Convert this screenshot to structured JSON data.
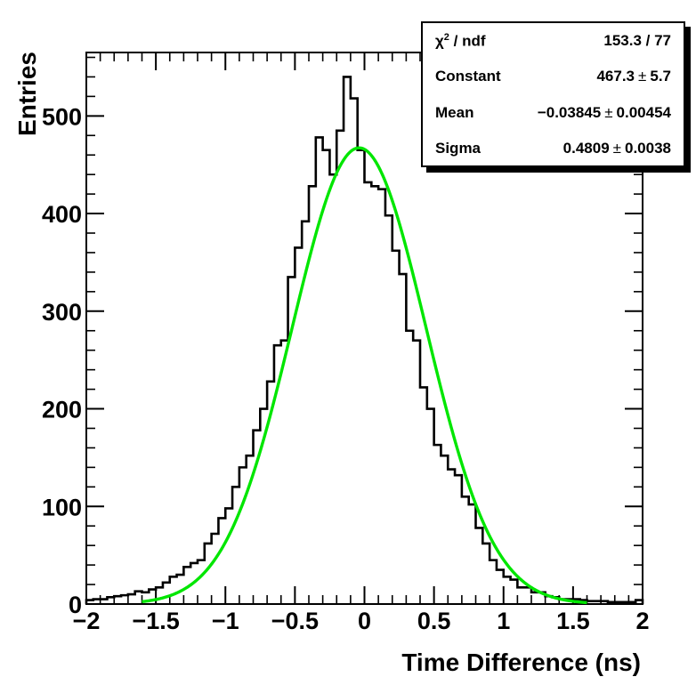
{
  "chart_data": {
    "type": "bar",
    "histogram": true,
    "xlabel": "Time Difference (ns)",
    "ylabel": "Entries",
    "xlim": [
      -2,
      2
    ],
    "ylim": [
      0,
      565
    ],
    "x_ticks": [
      -2,
      -1.5,
      -1,
      -0.5,
      0,
      0.5,
      1,
      1.5,
      2
    ],
    "x_tick_labels": [
      "−2",
      "−1.5",
      "−1",
      "−0.5",
      "0",
      "0.5",
      "1",
      "1.5",
      "2"
    ],
    "y_ticks": [
      0,
      100,
      200,
      300,
      400,
      500
    ],
    "y_tick_labels": [
      "0",
      "100",
      "200",
      "300",
      "400",
      "500"
    ],
    "bin_edges_range": [
      -2,
      2
    ],
    "bin_width": 0.05,
    "values": [
      4,
      5,
      5,
      7,
      8,
      9,
      10,
      13,
      12,
      15,
      17,
      22,
      28,
      30,
      38,
      42,
      45,
      62,
      72,
      88,
      98,
      120,
      140,
      152,
      178,
      200,
      228,
      265,
      270,
      335,
      365,
      392,
      428,
      478,
      465,
      440,
      485,
      540,
      518,
      465,
      432,
      428,
      425,
      398,
      362,
      338,
      280,
      270,
      222,
      200,
      163,
      152,
      138,
      132,
      110,
      102,
      78,
      62,
      45,
      35,
      28,
      25,
      17,
      17,
      12,
      12,
      8,
      7,
      5,
      5,
      5,
      4,
      3,
      3,
      3,
      2,
      2,
      2,
      2,
      4
    ],
    "histogram_color": "#000000",
    "fit": {
      "function": "gaussian",
      "constant": 467.3,
      "mean": -0.03845,
      "sigma": 0.4809,
      "color": "#00e600"
    },
    "grid": false
  },
  "stats_box": {
    "rows": [
      {
        "label_main": "χ",
        "label_sup": "2",
        "label_rest": " / ndf",
        "value": "153.3 / 77",
        "error": ""
      },
      {
        "label_main": "Constant",
        "label_sup": "",
        "label_rest": "",
        "value": "467.3",
        "error": "5.7"
      },
      {
        "label_main": "Mean",
        "label_sup": "",
        "label_rest": "",
        "value": "−0.03845",
        "error": "0.00454"
      },
      {
        "label_main": "Sigma",
        "label_sup": "",
        "label_rest": "",
        "value": "0.4809",
        "error": "0.0038"
      }
    ],
    "pm_symbol": "±"
  }
}
